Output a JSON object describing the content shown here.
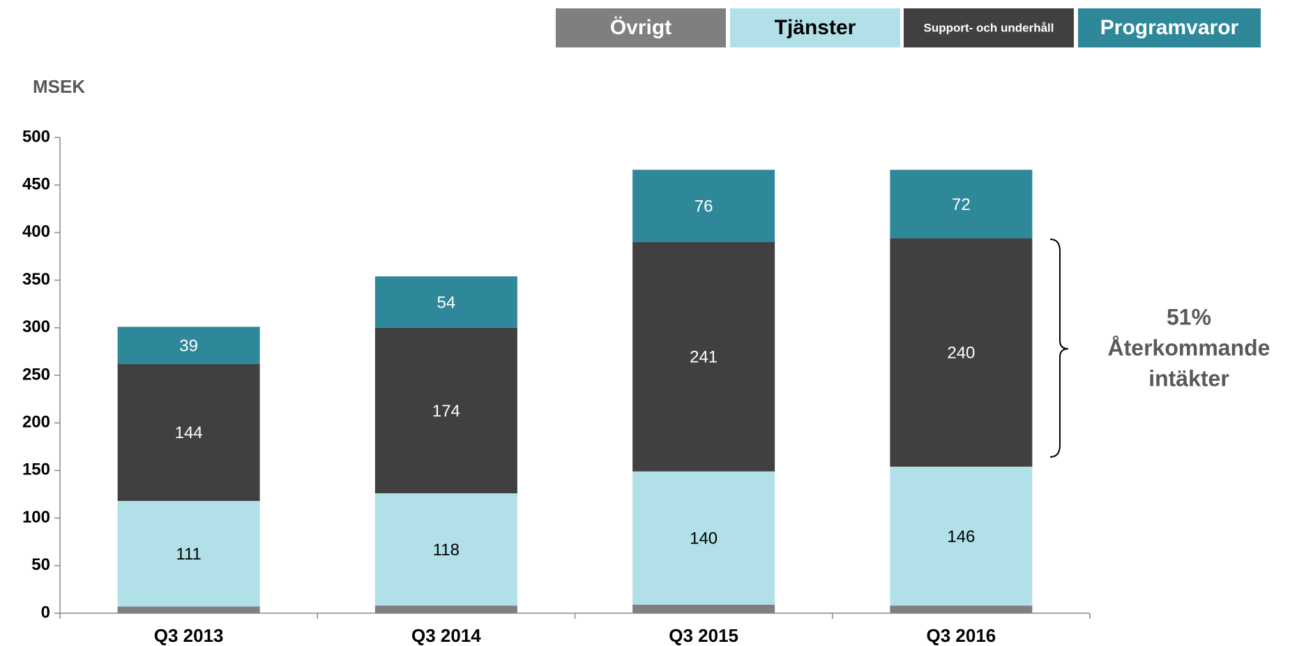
{
  "chart_data": {
    "type": "stacked_bar",
    "y_label": "MSEK",
    "categories": [
      "Q3 2013",
      "Q3 2014",
      "Q3 2015",
      "Q3 2016"
    ],
    "series": [
      {
        "name": "Övrigt",
        "color": "#7f7f7f",
        "values": [
          7,
          8,
          9,
          8
        ]
      },
      {
        "name": "Tjänster",
        "color": "#b1e0e8",
        "values": [
          111,
          118,
          140,
          146
        ]
      },
      {
        "name": "Support- och underhåll",
        "color": "#404040",
        "values": [
          144,
          174,
          241,
          240
        ]
      },
      {
        "name": "Programvaror",
        "color": "#2e889a",
        "values": [
          39,
          54,
          76,
          72
        ]
      }
    ],
    "ylim": [
      0,
      500
    ],
    "yticks": [
      0,
      50,
      100,
      150,
      200,
      250,
      300,
      350,
      400,
      450,
      500
    ],
    "annotation": [
      "51%",
      "Återkommande",
      "intäkter"
    ]
  }
}
